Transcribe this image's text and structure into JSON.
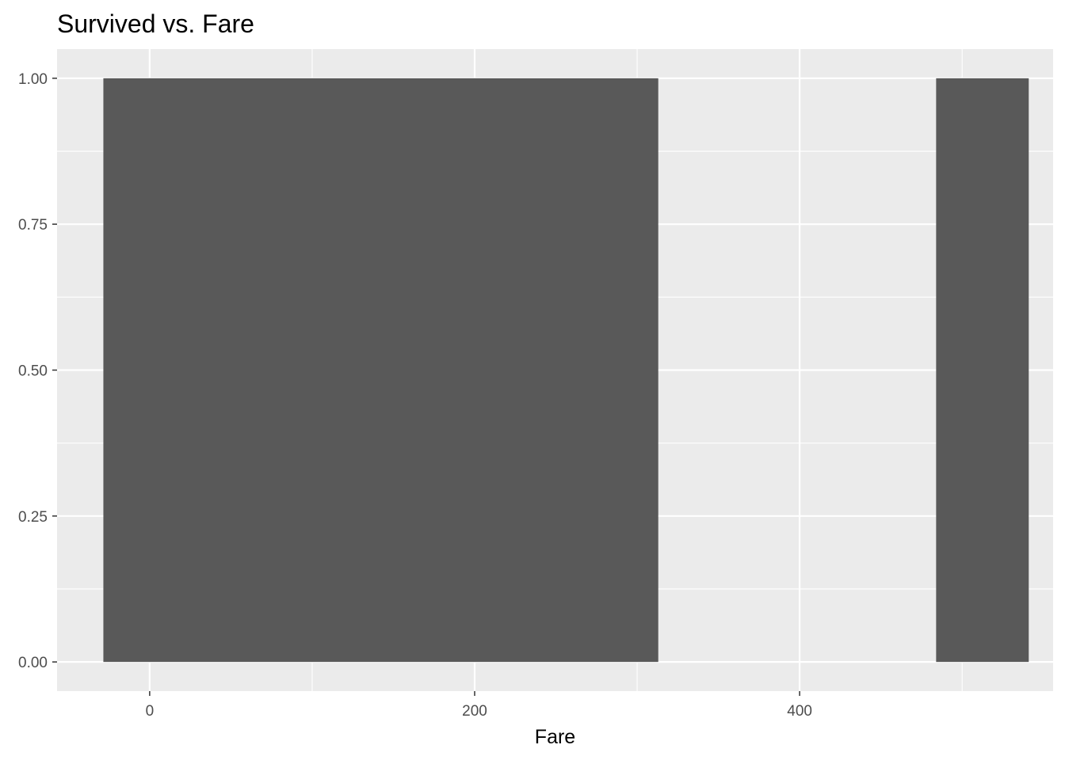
{
  "chart_data": {
    "type": "bar",
    "title": "Survived vs. Fare",
    "xlabel": "Fare",
    "ylabel": "",
    "xlim": [
      -57,
      556
    ],
    "ylim": [
      -0.05,
      1.05
    ],
    "x_ticks": [
      0,
      200,
      400
    ],
    "x_tick_labels": [
      "0",
      "200",
      "400"
    ],
    "x_minor_ticks": [
      100,
      300,
      500
    ],
    "y_ticks": [
      0,
      0.25,
      0.5,
      0.75,
      1.0
    ],
    "y_tick_labels": [
      "0.00",
      "0.25",
      "0.50",
      "0.75",
      "1.00"
    ],
    "y_minor_ticks": [
      0.125,
      0.375,
      0.625,
      0.875
    ],
    "grid": true,
    "legend": "none",
    "colors": {
      "panel_background": "#EBEBEB",
      "grid_lines": "#FFFFFF",
      "bar_fill": "#595959",
      "tick_text": "#4D4D4D",
      "tick_marks": "#333333"
    },
    "bars": [
      {
        "x_start": -28.5,
        "x_end": 313,
        "value": 1
      },
      {
        "x_start": 484,
        "x_end": 541,
        "value": 1
      }
    ]
  }
}
